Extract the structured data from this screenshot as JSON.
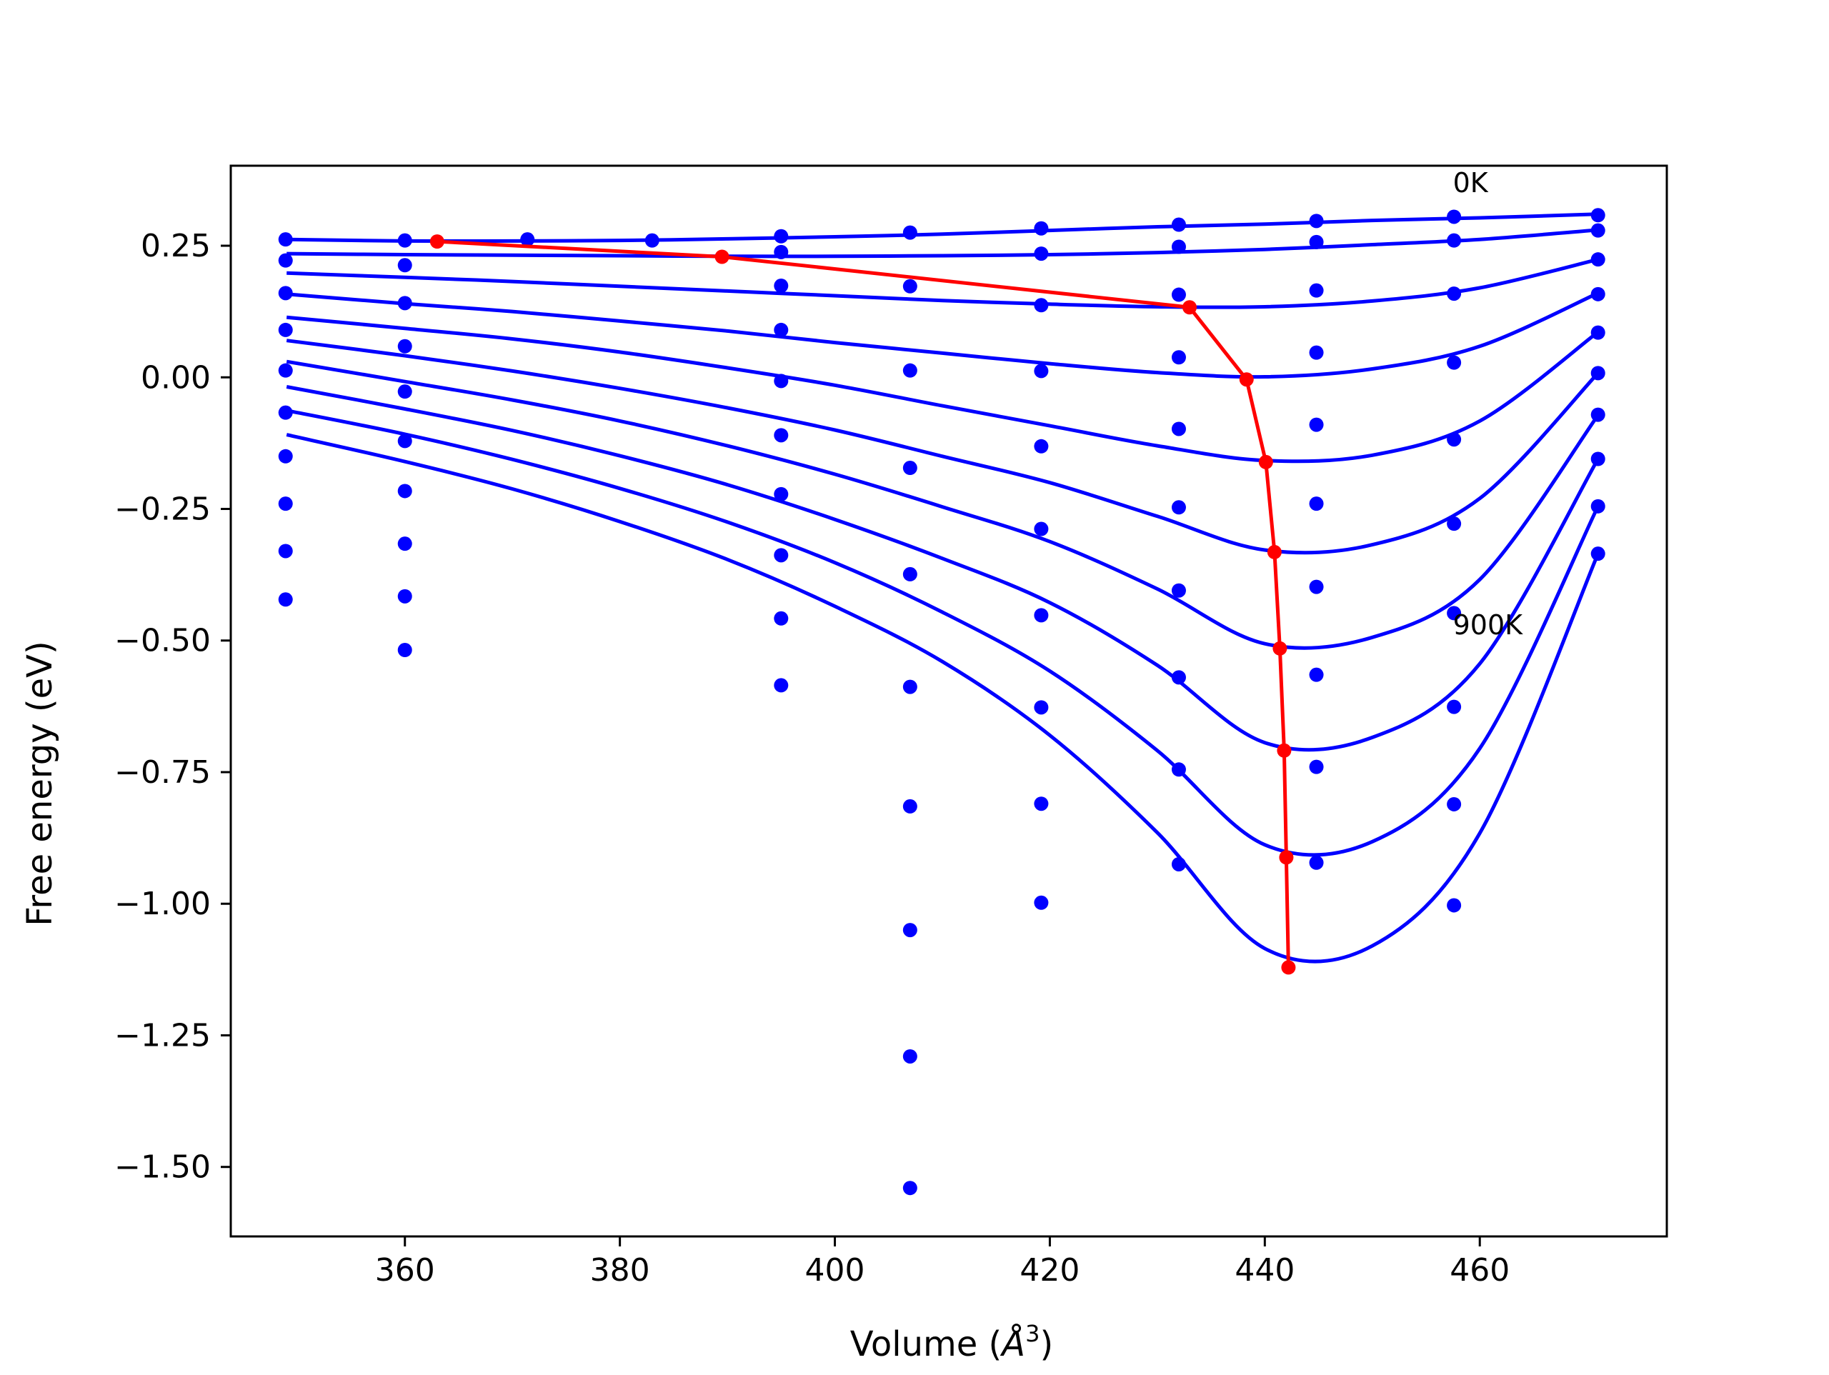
{
  "chart_data": {
    "type": "line",
    "title": "",
    "xlabel": "Volume (",
    "xlabel_symbol": "Å",
    "xlabel_exponent": "3",
    "xlabel_close": ")",
    "ylabel": "Free energy (eV)",
    "xlim": [
      343.8,
      477.4
    ],
    "ylim": [
      -1.632,
      0.402
    ],
    "grid": false,
    "legend": "none",
    "xticks": [
      360,
      380,
      400,
      420,
      440,
      460
    ],
    "xtick_labels": [
      "360",
      "380",
      "400",
      "420",
      "440",
      "460"
    ],
    "yticks": [
      0.25,
      0.0,
      -0.25,
      -0.5,
      -0.75,
      -1.0,
      -1.25,
      -1.5
    ],
    "ytick_labels": [
      "0.25",
      "0.00",
      "−0.25",
      "−0.50",
      "−0.75",
      "−1.00",
      "−1.25",
      "−1.50"
    ],
    "colors": {
      "points": "#0000ff",
      "fits": "#0000ff",
      "minimum_line": "#ff0000"
    },
    "annotations": [
      {
        "text": "0K",
        "x": 457.5,
        "y": 0.352
      },
      {
        "text": "900K",
        "x": 457.5,
        "y": -0.488
      }
    ],
    "points": [
      [
        348.9,
        0.262
      ],
      [
        348.9,
        0.222
      ],
      [
        348.9,
        0.16
      ],
      [
        348.9,
        0.09
      ],
      [
        348.9,
        0.013
      ],
      [
        348.9,
        -0.067
      ],
      [
        348.9,
        -0.15
      ],
      [
        348.9,
        -0.24
      ],
      [
        348.9,
        -0.33
      ],
      [
        348.9,
        -0.422
      ],
      [
        360.0,
        0.26
      ],
      [
        360.0,
        0.213
      ],
      [
        360.0,
        0.141
      ],
      [
        360.0,
        0.059
      ],
      [
        360.0,
        -0.027
      ],
      [
        360.0,
        -0.121
      ],
      [
        360.0,
        -0.216
      ],
      [
        360.0,
        -0.316
      ],
      [
        360.0,
        -0.416
      ],
      [
        360.0,
        -0.518
      ],
      [
        371.4,
        0.262
      ],
      [
        383.0,
        0.26
      ],
      [
        395.0,
        0.268
      ],
      [
        395.0,
        0.238
      ],
      [
        395.0,
        0.174
      ],
      [
        395.0,
        0.09
      ],
      [
        395.0,
        -0.007
      ],
      [
        395.0,
        -0.11
      ],
      [
        395.0,
        -0.222
      ],
      [
        395.0,
        -0.338
      ],
      [
        395.0,
        -0.458
      ],
      [
        395.0,
        -0.585
      ],
      [
        407.0,
        0.275
      ],
      [
        407.0,
        0.173
      ],
      [
        407.0,
        0.013
      ],
      [
        407.0,
        -0.172
      ],
      [
        407.0,
        -0.374
      ],
      [
        407.0,
        -0.588
      ],
      [
        407.0,
        -0.815
      ],
      [
        407.0,
        -1.05
      ],
      [
        407.0,
        -1.29
      ],
      [
        407.0,
        -1.54
      ],
      [
        419.2,
        0.283
      ],
      [
        419.2,
        0.235
      ],
      [
        419.2,
        0.137
      ],
      [
        419.2,
        0.012
      ],
      [
        419.2,
        -0.131
      ],
      [
        419.2,
        -0.288
      ],
      [
        419.2,
        -0.452
      ],
      [
        419.2,
        -0.627
      ],
      [
        419.2,
        -0.81
      ],
      [
        419.2,
        -0.998
      ],
      [
        432.0,
        0.29
      ],
      [
        432.0,
        0.248
      ],
      [
        432.0,
        0.157
      ],
      [
        432.0,
        0.038
      ],
      [
        432.0,
        -0.098
      ],
      [
        432.0,
        -0.247
      ],
      [
        432.0,
        -0.405
      ],
      [
        432.0,
        -0.57
      ],
      [
        432.0,
        -0.745
      ],
      [
        432.0,
        -0.925
      ],
      [
        444.8,
        0.297
      ],
      [
        444.8,
        0.257
      ],
      [
        444.8,
        0.165
      ],
      [
        444.8,
        0.047
      ],
      [
        444.8,
        -0.09
      ],
      [
        444.8,
        -0.24
      ],
      [
        444.8,
        -0.398
      ],
      [
        444.8,
        -0.565
      ],
      [
        444.8,
        -0.74
      ],
      [
        444.8,
        -0.922
      ],
      [
        457.6,
        0.305
      ],
      [
        457.6,
        0.26
      ],
      [
        457.6,
        0.159
      ],
      [
        457.6,
        0.028
      ],
      [
        457.6,
        -0.118
      ],
      [
        457.6,
        -0.278
      ],
      [
        457.6,
        -0.448
      ],
      [
        457.6,
        -0.626
      ],
      [
        457.6,
        -0.811
      ],
      [
        457.6,
        -1.003
      ],
      [
        471.0,
        0.308
      ],
      [
        471.0,
        0.279
      ],
      [
        471.0,
        0.224
      ],
      [
        471.0,
        0.158
      ],
      [
        471.0,
        0.085
      ],
      [
        471.0,
        0.008
      ],
      [
        471.0,
        -0.071
      ],
      [
        471.0,
        -0.155
      ],
      [
        471.0,
        -0.245
      ],
      [
        471.0,
        -0.335
      ]
    ],
    "series": [
      {
        "x": [
          349,
          360,
          370,
          380,
          390,
          400,
          410,
          420,
          430,
          440,
          450,
          460,
          471
        ],
        "y": [
          0.262,
          0.259,
          0.259,
          0.26,
          0.263,
          0.267,
          0.272,
          0.279,
          0.286,
          0.291,
          0.298,
          0.303,
          0.31
        ]
      },
      {
        "x": [
          349,
          360,
          370,
          380,
          390,
          400,
          410,
          420,
          430,
          440,
          450,
          460,
          471
        ],
        "y": [
          0.235,
          0.233,
          0.232,
          0.231,
          0.23,
          0.23,
          0.231,
          0.233,
          0.237,
          0.243,
          0.252,
          0.262,
          0.28
        ]
      },
      {
        "x": [
          349,
          360,
          370,
          380,
          390,
          400,
          410,
          420,
          430,
          440,
          450,
          460,
          471
        ],
        "y": [
          0.198,
          0.19,
          0.182,
          0.173,
          0.164,
          0.155,
          0.146,
          0.139,
          0.134,
          0.134,
          0.145,
          0.17,
          0.224
        ]
      },
      {
        "x": [
          349,
          360,
          370,
          380,
          390,
          400,
          410,
          420,
          430,
          440,
          450,
          460,
          471
        ],
        "y": [
          0.158,
          0.14,
          0.125,
          0.107,
          0.088,
          0.066,
          0.046,
          0.026,
          0.009,
          0.001,
          0.016,
          0.059,
          0.16
        ]
      },
      {
        "x": [
          349,
          360,
          370,
          380,
          390,
          400,
          410,
          420,
          430,
          440,
          450,
          460,
          471
        ],
        "y": [
          0.114,
          0.093,
          0.073,
          0.048,
          0.018,
          -0.015,
          -0.054,
          -0.092,
          -0.13,
          -0.158,
          -0.148,
          -0.083,
          0.086
        ]
      },
      {
        "x": [
          349,
          360,
          370,
          380,
          390,
          400,
          410,
          420,
          430,
          440,
          450,
          460,
          471
        ],
        "y": [
          0.07,
          0.041,
          0.012,
          -0.021,
          -0.058,
          -0.1,
          -0.15,
          -0.2,
          -0.264,
          -0.328,
          -0.318,
          -0.23,
          0.008
        ]
      },
      {
        "x": [
          349,
          360,
          370,
          380,
          390,
          400,
          410,
          420,
          430,
          440,
          450,
          460,
          471
        ],
        "y": [
          0.03,
          -0.008,
          -0.043,
          -0.083,
          -0.13,
          -0.184,
          -0.246,
          -0.312,
          -0.402,
          -0.506,
          -0.494,
          -0.384,
          -0.072
        ]
      },
      {
        "x": [
          349,
          360,
          370,
          380,
          390,
          400,
          410,
          420,
          430,
          440,
          450,
          460,
          471
        ],
        "y": [
          -0.018,
          -0.06,
          -0.101,
          -0.149,
          -0.204,
          -0.27,
          -0.344,
          -0.428,
          -0.547,
          -0.694,
          -0.684,
          -0.544,
          -0.155
        ]
      },
      {
        "x": [
          349,
          360,
          370,
          380,
          390,
          400,
          410,
          420,
          430,
          440,
          450,
          460,
          471
        ],
        "y": [
          -0.063,
          -0.108,
          -0.156,
          -0.211,
          -0.275,
          -0.352,
          -0.446,
          -0.558,
          -0.709,
          -0.888,
          -0.882,
          -0.705,
          -0.245
        ]
      },
      {
        "x": [
          349,
          360,
          370,
          380,
          390,
          400,
          410,
          420,
          430,
          440,
          450,
          460,
          471
        ],
        "y": [
          -0.109,
          -0.16,
          -0.212,
          -0.274,
          -0.346,
          -0.435,
          -0.54,
          -0.68,
          -0.865,
          -1.085,
          -1.08,
          -0.866,
          -0.335
        ]
      }
    ],
    "minimum_line": {
      "x": [
        363.0,
        389.5,
        433.0,
        438.3,
        440.1,
        440.9,
        441.4,
        441.8,
        442.0,
        442.2
      ],
      "y": [
        0.258,
        0.229,
        0.133,
        -0.004,
        -0.161,
        -0.332,
        -0.515,
        -0.709,
        -0.912,
        -1.121
      ]
    }
  }
}
